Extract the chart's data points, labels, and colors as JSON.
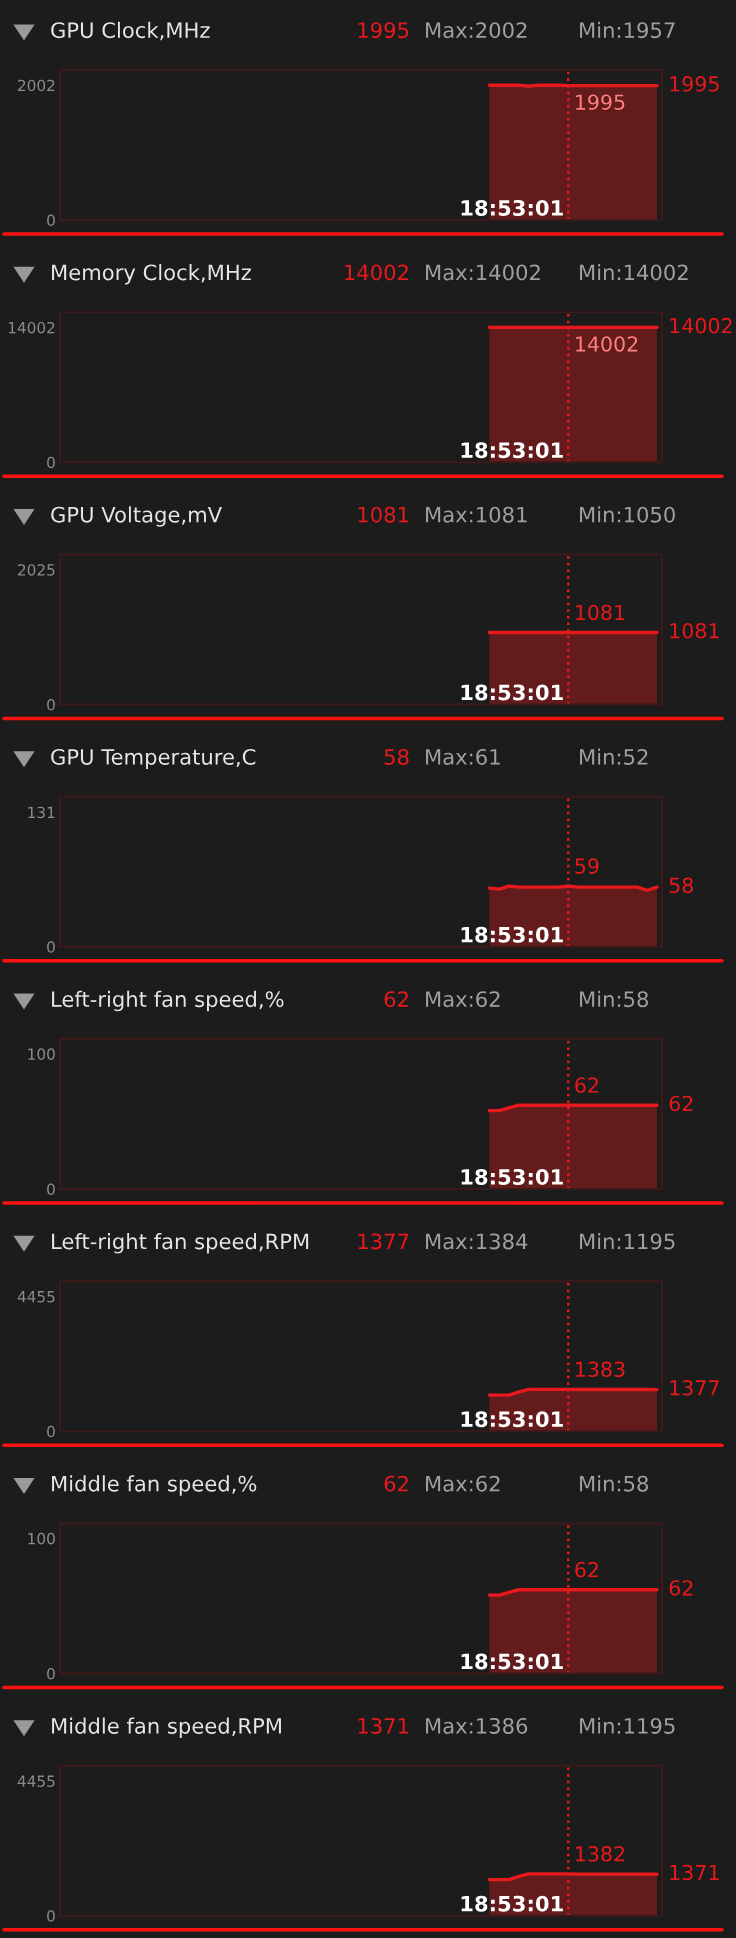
{
  "chart_data": [
    {
      "type": "area",
      "title": "GPU Clock,MHz",
      "annotations": [
        "1995",
        "Max:2002",
        "Min:1957",
        "18:53:01"
      ],
      "categories": [
        null,
        null,
        null,
        null,
        null,
        null,
        null,
        null,
        null,
        null,
        null,
        null,
        null,
        null,
        null,
        null,
        null,
        null,
        null,
        null,
        null,
        null,
        null,
        null,
        null,
        null,
        null,
        null,
        null,
        null,
        null,
        null,
        null,
        null,
        null,
        null,
        null,
        null,
        null,
        null,
        null,
        null,
        null,
        null,
        null,
        null,
        null,
        null,
        null,
        null,
        null,
        null,
        null,
        null,
        null,
        null,
        null,
        null,
        null,
        null,
        null
      ],
      "series": [
        {
          "color": "#e8191c",
          "values": [
            null,
            null,
            null,
            null,
            null,
            null,
            null,
            null,
            null,
            null,
            null,
            null,
            null,
            null,
            null,
            null,
            null,
            null,
            null,
            null,
            null,
            null,
            null,
            null,
            null,
            null,
            null,
            null,
            null,
            null,
            null,
            null,
            null,
            null,
            null,
            null,
            null,
            null,
            null,
            null,
            null,
            null,
            null,
            2002,
            2002,
            2002,
            2002,
            1987,
            2002,
            2002,
            2002,
            1995,
            1995,
            1995,
            1995,
            1995,
            1995,
            1995,
            1995,
            1995,
            1995
          ],
          "value_labels": [
            null,
            null,
            null,
            null,
            null,
            null,
            null,
            null,
            null,
            null,
            null,
            null,
            null,
            null,
            null,
            null,
            null,
            null,
            null,
            null,
            null,
            null,
            null,
            null,
            null,
            null,
            null,
            null,
            null,
            null,
            null,
            null,
            null,
            null,
            null,
            null,
            null,
            null,
            null,
            null,
            null,
            null,
            null,
            null,
            null,
            null,
            null,
            null,
            null,
            null,
            null,
            "1995",
            null,
            null,
            null,
            null,
            null,
            null,
            null,
            null,
            "1995"
          ]
        }
      ],
      "ylim": [
        0,
        2228
      ],
      "yticks": [
        0,
        2002
      ],
      "tick_labels": "y"
    },
    {
      "type": "area",
      "title": "Memory Clock,MHz",
      "annotations": [
        "14002",
        "Max:14002",
        "Min:14002",
        "18:53:01"
      ],
      "categories": [
        null,
        null,
        null,
        null,
        null,
        null,
        null,
        null,
        null,
        null,
        null,
        null,
        null,
        null,
        null,
        null,
        null,
        null,
        null,
        null,
        null,
        null,
        null,
        null,
        null,
        null,
        null,
        null,
        null,
        null,
        null,
        null,
        null,
        null,
        null,
        null,
        null,
        null,
        null,
        null,
        null,
        null,
        null,
        null,
        null,
        null,
        null,
        null,
        null,
        null,
        null,
        null,
        null,
        null,
        null,
        null,
        null,
        null,
        null,
        null,
        null
      ],
      "series": [
        {
          "color": "#e8191c",
          "values": [
            null,
            null,
            null,
            null,
            null,
            null,
            null,
            null,
            null,
            null,
            null,
            null,
            null,
            null,
            null,
            null,
            null,
            null,
            null,
            null,
            null,
            null,
            null,
            null,
            null,
            null,
            null,
            null,
            null,
            null,
            null,
            null,
            null,
            null,
            null,
            null,
            null,
            null,
            null,
            null,
            null,
            null,
            null,
            14002,
            14002,
            14002,
            14002,
            14002,
            14002,
            14002,
            14002,
            14002,
            14002,
            14002,
            14002,
            14002,
            14002,
            14002,
            14002,
            14002,
            14002
          ],
          "value_labels": [
            null,
            null,
            null,
            null,
            null,
            null,
            null,
            null,
            null,
            null,
            null,
            null,
            null,
            null,
            null,
            null,
            null,
            null,
            null,
            null,
            null,
            null,
            null,
            null,
            null,
            null,
            null,
            null,
            null,
            null,
            null,
            null,
            null,
            null,
            null,
            null,
            null,
            null,
            null,
            null,
            null,
            null,
            null,
            null,
            null,
            null,
            null,
            null,
            null,
            null,
            null,
            "14002",
            null,
            null,
            null,
            null,
            null,
            null,
            null,
            null,
            "14002"
          ]
        }
      ],
      "ylim": [
        0,
        15580
      ],
      "yticks": [
        0,
        14002
      ],
      "tick_labels": "y"
    },
    {
      "type": "area",
      "title": "GPU Voltage,mV",
      "annotations": [
        "1081",
        "Max:1081",
        "Min:1050",
        "18:53:01"
      ],
      "categories": [
        null,
        null,
        null,
        null,
        null,
        null,
        null,
        null,
        null,
        null,
        null,
        null,
        null,
        null,
        null,
        null,
        null,
        null,
        null,
        null,
        null,
        null,
        null,
        null,
        null,
        null,
        null,
        null,
        null,
        null,
        null,
        null,
        null,
        null,
        null,
        null,
        null,
        null,
        null,
        null,
        null,
        null,
        null,
        null,
        null,
        null,
        null,
        null,
        null,
        null,
        null,
        null,
        null,
        null,
        null,
        null,
        null,
        null,
        null,
        null,
        null
      ],
      "series": [
        {
          "color": "#e8191c",
          "values": [
            null,
            null,
            null,
            null,
            null,
            null,
            null,
            null,
            null,
            null,
            null,
            null,
            null,
            null,
            null,
            null,
            null,
            null,
            null,
            null,
            null,
            null,
            null,
            null,
            null,
            null,
            null,
            null,
            null,
            null,
            null,
            null,
            null,
            null,
            null,
            null,
            null,
            null,
            null,
            null,
            null,
            null,
            null,
            1081,
            1081,
            1081,
            1081,
            1081,
            1081,
            1081,
            1081,
            1081,
            1081,
            1081,
            1081,
            1081,
            1081,
            1081,
            1081,
            1081,
            1081
          ],
          "value_labels": [
            null,
            null,
            null,
            null,
            null,
            null,
            null,
            null,
            null,
            null,
            null,
            null,
            null,
            null,
            null,
            null,
            null,
            null,
            null,
            null,
            null,
            null,
            null,
            null,
            null,
            null,
            null,
            null,
            null,
            null,
            null,
            null,
            null,
            null,
            null,
            null,
            null,
            null,
            null,
            null,
            null,
            null,
            null,
            null,
            null,
            null,
            null,
            null,
            null,
            null,
            null,
            "1081",
            null,
            null,
            null,
            null,
            null,
            null,
            null,
            null,
            "1081"
          ]
        }
      ],
      "ylim": [
        0,
        2253
      ],
      "yticks": [
        0,
        2025
      ],
      "tick_labels": "y"
    },
    {
      "type": "area",
      "title": "GPU Temperature,C",
      "annotations": [
        "58",
        "Max:61",
        "Min:52",
        "18:53:01"
      ],
      "categories": [
        null,
        null,
        null,
        null,
        null,
        null,
        null,
        null,
        null,
        null,
        null,
        null,
        null,
        null,
        null,
        null,
        null,
        null,
        null,
        null,
        null,
        null,
        null,
        null,
        null,
        null,
        null,
        null,
        null,
        null,
        null,
        null,
        null,
        null,
        null,
        null,
        null,
        null,
        null,
        null,
        null,
        null,
        null,
        null,
        null,
        null,
        null,
        null,
        null,
        null,
        null,
        null,
        null,
        null,
        null,
        null,
        null,
        null,
        null,
        null,
        null
      ],
      "series": [
        {
          "color": "#e8191c",
          "values": [
            null,
            null,
            null,
            null,
            null,
            null,
            null,
            null,
            null,
            null,
            null,
            null,
            null,
            null,
            null,
            null,
            null,
            null,
            null,
            null,
            null,
            null,
            null,
            null,
            null,
            null,
            null,
            null,
            null,
            null,
            null,
            null,
            null,
            null,
            null,
            null,
            null,
            null,
            null,
            null,
            null,
            null,
            null,
            57,
            56,
            59,
            58,
            58,
            58,
            58,
            58,
            59,
            58,
            58,
            58,
            58,
            58,
            58,
            58,
            55,
            58
          ],
          "value_labels": [
            null,
            null,
            null,
            null,
            null,
            null,
            null,
            null,
            null,
            null,
            null,
            null,
            null,
            null,
            null,
            null,
            null,
            null,
            null,
            null,
            null,
            null,
            null,
            null,
            null,
            null,
            null,
            null,
            null,
            null,
            null,
            null,
            null,
            null,
            null,
            null,
            null,
            null,
            null,
            null,
            null,
            null,
            null,
            null,
            null,
            null,
            null,
            null,
            null,
            null,
            null,
            "59",
            null,
            null,
            null,
            null,
            null,
            null,
            null,
            null,
            "58"
          ]
        }
      ],
      "ylim": [
        0,
        146
      ],
      "yticks": [
        0,
        131
      ],
      "tick_labels": "y"
    },
    {
      "type": "area",
      "title": "Left-right fan speed,%",
      "annotations": [
        "62",
        "Max:62",
        "Min:58",
        "18:53:01"
      ],
      "categories": [
        null,
        null,
        null,
        null,
        null,
        null,
        null,
        null,
        null,
        null,
        null,
        null,
        null,
        null,
        null,
        null,
        null,
        null,
        null,
        null,
        null,
        null,
        null,
        null,
        null,
        null,
        null,
        null,
        null,
        null,
        null,
        null,
        null,
        null,
        null,
        null,
        null,
        null,
        null,
        null,
        null,
        null,
        null,
        null,
        null,
        null,
        null,
        null,
        null,
        null,
        null,
        null,
        null,
        null,
        null,
        null,
        null,
        null,
        null,
        null,
        null
      ],
      "series": [
        {
          "color": "#e8191c",
          "values": [
            null,
            null,
            null,
            null,
            null,
            null,
            null,
            null,
            null,
            null,
            null,
            null,
            null,
            null,
            null,
            null,
            null,
            null,
            null,
            null,
            null,
            null,
            null,
            null,
            null,
            null,
            null,
            null,
            null,
            null,
            null,
            null,
            null,
            null,
            null,
            null,
            null,
            null,
            null,
            null,
            null,
            null,
            null,
            58,
            58,
            60,
            62,
            62,
            62,
            62,
            62,
            62,
            62,
            62,
            62,
            62,
            62,
            62,
            62,
            62,
            62
          ],
          "value_labels": [
            null,
            null,
            null,
            null,
            null,
            null,
            null,
            null,
            null,
            null,
            null,
            null,
            null,
            null,
            null,
            null,
            null,
            null,
            null,
            null,
            null,
            null,
            null,
            null,
            null,
            null,
            null,
            null,
            null,
            null,
            null,
            null,
            null,
            null,
            null,
            null,
            null,
            null,
            null,
            null,
            null,
            null,
            null,
            null,
            null,
            null,
            null,
            null,
            null,
            null,
            null,
            "62",
            null,
            null,
            null,
            null,
            null,
            null,
            null,
            null,
            "62"
          ]
        }
      ],
      "ylim": [
        0,
        111
      ],
      "yticks": [
        0,
        100
      ],
      "tick_labels": "y"
    },
    {
      "type": "area",
      "title": "Left-right fan speed,RPM",
      "annotations": [
        "1377",
        "Max:1384",
        "Min:1195",
        "18:53:01"
      ],
      "categories": [
        null,
        null,
        null,
        null,
        null,
        null,
        null,
        null,
        null,
        null,
        null,
        null,
        null,
        null,
        null,
        null,
        null,
        null,
        null,
        null,
        null,
        null,
        null,
        null,
        null,
        null,
        null,
        null,
        null,
        null,
        null,
        null,
        null,
        null,
        null,
        null,
        null,
        null,
        null,
        null,
        null,
        null,
        null,
        null,
        null,
        null,
        null,
        null,
        null,
        null,
        null,
        null,
        null,
        null,
        null,
        null,
        null,
        null,
        null,
        null,
        null
      ],
      "series": [
        {
          "color": "#e8191c",
          "values": [
            null,
            null,
            null,
            null,
            null,
            null,
            null,
            null,
            null,
            null,
            null,
            null,
            null,
            null,
            null,
            null,
            null,
            null,
            null,
            null,
            null,
            null,
            null,
            null,
            null,
            null,
            null,
            null,
            null,
            null,
            null,
            null,
            null,
            null,
            null,
            null,
            null,
            null,
            null,
            null,
            null,
            null,
            null,
            1195,
            1195,
            1195,
            1300,
            1384,
            1384,
            1384,
            1384,
            1383,
            1380,
            1380,
            1380,
            1380,
            1380,
            1380,
            1380,
            1380,
            1377
          ],
          "value_labels": [
            null,
            null,
            null,
            null,
            null,
            null,
            null,
            null,
            null,
            null,
            null,
            null,
            null,
            null,
            null,
            null,
            null,
            null,
            null,
            null,
            null,
            null,
            null,
            null,
            null,
            null,
            null,
            null,
            null,
            null,
            null,
            null,
            null,
            null,
            null,
            null,
            null,
            null,
            null,
            null,
            null,
            null,
            null,
            null,
            null,
            null,
            null,
            null,
            null,
            null,
            null,
            "1383",
            null,
            null,
            null,
            null,
            null,
            null,
            null,
            null,
            "1377"
          ]
        }
      ],
      "ylim": [
        0,
        4957
      ],
      "yticks": [
        0,
        4455
      ],
      "tick_labels": "y"
    },
    {
      "type": "area",
      "title": "Middle fan speed,%",
      "annotations": [
        "62",
        "Max:62",
        "Min:58",
        "18:53:01"
      ],
      "categories": [
        null,
        null,
        null,
        null,
        null,
        null,
        null,
        null,
        null,
        null,
        null,
        null,
        null,
        null,
        null,
        null,
        null,
        null,
        null,
        null,
        null,
        null,
        null,
        null,
        null,
        null,
        null,
        null,
        null,
        null,
        null,
        null,
        null,
        null,
        null,
        null,
        null,
        null,
        null,
        null,
        null,
        null,
        null,
        null,
        null,
        null,
        null,
        null,
        null,
        null,
        null,
        null,
        null,
        null,
        null,
        null,
        null,
        null,
        null,
        null,
        null
      ],
      "series": [
        {
          "color": "#e8191c",
          "values": [
            null,
            null,
            null,
            null,
            null,
            null,
            null,
            null,
            null,
            null,
            null,
            null,
            null,
            null,
            null,
            null,
            null,
            null,
            null,
            null,
            null,
            null,
            null,
            null,
            null,
            null,
            null,
            null,
            null,
            null,
            null,
            null,
            null,
            null,
            null,
            null,
            null,
            null,
            null,
            null,
            null,
            null,
            null,
            58,
            58,
            60,
            62,
            62,
            62,
            62,
            62,
            62,
            62,
            62,
            62,
            62,
            62,
            62,
            62,
            62,
            62
          ],
          "value_labels": [
            null,
            null,
            null,
            null,
            null,
            null,
            null,
            null,
            null,
            null,
            null,
            null,
            null,
            null,
            null,
            null,
            null,
            null,
            null,
            null,
            null,
            null,
            null,
            null,
            null,
            null,
            null,
            null,
            null,
            null,
            null,
            null,
            null,
            null,
            null,
            null,
            null,
            null,
            null,
            null,
            null,
            null,
            null,
            null,
            null,
            null,
            null,
            null,
            null,
            null,
            null,
            "62",
            null,
            null,
            null,
            null,
            null,
            null,
            null,
            null,
            "62"
          ]
        }
      ],
      "ylim": [
        0,
        111
      ],
      "yticks": [
        0,
        100
      ],
      "tick_labels": "y"
    },
    {
      "type": "area",
      "title": "Middle fan speed,RPM",
      "annotations": [
        "1371",
        "Max:1386",
        "Min:1195",
        "18:53:01"
      ],
      "categories": [
        null,
        null,
        null,
        null,
        null,
        null,
        null,
        null,
        null,
        null,
        null,
        null,
        null,
        null,
        null,
        null,
        null,
        null,
        null,
        null,
        null,
        null,
        null,
        null,
        null,
        null,
        null,
        null,
        null,
        null,
        null,
        null,
        null,
        null,
        null,
        null,
        null,
        null,
        null,
        null,
        null,
        null,
        null,
        null,
        null,
        null,
        null,
        null,
        null,
        null,
        null,
        null,
        null,
        null,
        null,
        null,
        null,
        null,
        null,
        null,
        null
      ],
      "series": [
        {
          "color": "#e8191c",
          "values": [
            null,
            null,
            null,
            null,
            null,
            null,
            null,
            null,
            null,
            null,
            null,
            null,
            null,
            null,
            null,
            null,
            null,
            null,
            null,
            null,
            null,
            null,
            null,
            null,
            null,
            null,
            null,
            null,
            null,
            null,
            null,
            null,
            null,
            null,
            null,
            null,
            null,
            null,
            null,
            null,
            null,
            null,
            null,
            1195,
            1195,
            1195,
            1300,
            1386,
            1384,
            1384,
            1384,
            1382,
            1375,
            1375,
            1375,
            1375,
            1375,
            1375,
            1375,
            1375,
            1371
          ],
          "value_labels": [
            null,
            null,
            null,
            null,
            null,
            null,
            null,
            null,
            null,
            null,
            null,
            null,
            null,
            null,
            null,
            null,
            null,
            null,
            null,
            null,
            null,
            null,
            null,
            null,
            null,
            null,
            null,
            null,
            null,
            null,
            null,
            null,
            null,
            null,
            null,
            null,
            null,
            null,
            null,
            null,
            null,
            null,
            null,
            null,
            null,
            null,
            null,
            null,
            null,
            null,
            null,
            "1382",
            null,
            null,
            null,
            null,
            null,
            null,
            null,
            null,
            "1371"
          ]
        }
      ],
      "ylim": [
        0,
        4957
      ],
      "yticks": [
        0,
        4455
      ],
      "tick_labels": "y"
    }
  ]
}
